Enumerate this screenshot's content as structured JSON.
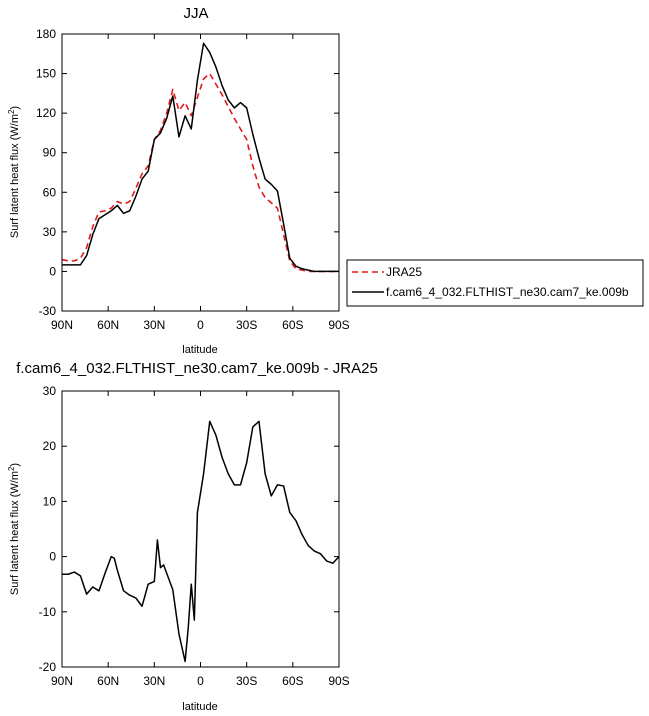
{
  "chart_data": [
    {
      "type": "line",
      "title": "JJA",
      "xlabel": "latitude",
      "ylabel_text": "Surf latent heat flux (W/m",
      "ylabel_sup": "2",
      "ylabel_close": ")",
      "xlim": [
        90,
        -90
      ],
      "ylim": [
        -30,
        180
      ],
      "x_ticks": [
        90,
        60,
        30,
        0,
        -30,
        -60,
        -90
      ],
      "x_tick_labels": [
        "90N",
        "60N",
        "30N",
        "0",
        "30S",
        "60S",
        "90S"
      ],
      "y_ticks": [
        -30,
        0,
        30,
        60,
        90,
        120,
        150,
        180
      ],
      "y_tick_labels": [
        "-30",
        "0",
        "30",
        "60",
        "90",
        "120",
        "150",
        "180"
      ],
      "legend_position": "right",
      "series": [
        {
          "name": "JRA25",
          "color": "#e31a1c",
          "dash": "dashed",
          "x": [
            90,
            86,
            82,
            78,
            74,
            70,
            66,
            62,
            58,
            54,
            50,
            46,
            42,
            38,
            34,
            30,
            26,
            22,
            18,
            14,
            10,
            6,
            2,
            -2,
            -6,
            -10,
            -14,
            -18,
            -22,
            -26,
            -30,
            -34,
            -38,
            -42,
            -46,
            -50,
            -54,
            -58,
            -62,
            -66,
            -70,
            -74,
            -78,
            -82,
            -86,
            -90
          ],
          "y": [
            9,
            8,
            8,
            10,
            18,
            34,
            45,
            46,
            48,
            53,
            51,
            53,
            63,
            74,
            80,
            100,
            107,
            120,
            138,
            122,
            128,
            118,
            132,
            146,
            150,
            142,
            134,
            125,
            116,
            108,
            100,
            80,
            64,
            56,
            52,
            48,
            28,
            8,
            2,
            1,
            0,
            0,
            0,
            0,
            0,
            0
          ]
        },
        {
          "name": "f.cam6_4_032.FLTHIST_ne30.cam7_ke.009b",
          "color": "#000000",
          "dash": "solid",
          "x": [
            90,
            86,
            82,
            78,
            74,
            70,
            66,
            62,
            58,
            54,
            50,
            46,
            42,
            38,
            34,
            30,
            26,
            22,
            18,
            14,
            10,
            6,
            2,
            -2,
            -6,
            -10,
            -14,
            -18,
            -22,
            -26,
            -30,
            -34,
            -38,
            -42,
            -46,
            -50,
            -54,
            -58,
            -62,
            -66,
            -70,
            -74,
            -78,
            -82,
            -86,
            -90
          ],
          "y": [
            5,
            5,
            5,
            5,
            12,
            28,
            40,
            43,
            46,
            50,
            44,
            46,
            57,
            70,
            76,
            100,
            105,
            116,
            133,
            102,
            118,
            108,
            145,
            173,
            166,
            155,
            141,
            130,
            124,
            128,
            124,
            104,
            86,
            70,
            66,
            61,
            36,
            10,
            4,
            2,
            1,
            0,
            0,
            0,
            0,
            0
          ]
        }
      ]
    },
    {
      "type": "line",
      "title": "f.cam6_4_032.FLTHIST_ne30.cam7_ke.009b - JRA25",
      "xlabel": "latitude",
      "ylabel_text": "Surf latent heat flux (W/m",
      "ylabel_sup": "2",
      "ylabel_close": ")",
      "xlim": [
        90,
        -90
      ],
      "ylim": [
        -20,
        30
      ],
      "x_ticks": [
        90,
        60,
        30,
        0,
        -30,
        -60,
        -90
      ],
      "x_tick_labels": [
        "90N",
        "60N",
        "30N",
        "0",
        "30S",
        "60S",
        "90S"
      ],
      "y_ticks": [
        -20,
        -10,
        0,
        10,
        20,
        30
      ],
      "y_tick_labels": [
        "-20",
        "-10",
        "0",
        "10",
        "20",
        "30"
      ],
      "series": [
        {
          "color": "#000000",
          "dash": "solid",
          "x": [
            90,
            86,
            82,
            78,
            74,
            70,
            66,
            62,
            58,
            56,
            54,
            50,
            46,
            42,
            38,
            34,
            30,
            28,
            26,
            24,
            22,
            18,
            14,
            10,
            8,
            6,
            4,
            2,
            -2,
            -6,
            -10,
            -14,
            -18,
            -22,
            -26,
            -30,
            -34,
            -38,
            -42,
            -46,
            -50,
            -54,
            -58,
            -62,
            -66,
            -70,
            -74,
            -78,
            -82,
            -86,
            -90
          ],
          "y": [
            -3.2,
            -3.2,
            -2.8,
            -3.5,
            -6.8,
            -5.5,
            -6.2,
            -3,
            0,
            -0.3,
            -2.5,
            -6.2,
            -7,
            -7.5,
            -9,
            -5,
            -4.5,
            3,
            -2,
            -1.5,
            -3,
            -6,
            -14,
            -19,
            -13,
            -5,
            -11.5,
            8,
            15,
            24.5,
            22,
            18,
            15,
            13,
            13,
            17,
            23.5,
            24.5,
            15,
            11,
            13,
            12.8,
            8,
            6.5,
            4,
            2,
            1,
            0.5,
            -0.8,
            -1.2,
            0
          ]
        }
      ]
    }
  ]
}
